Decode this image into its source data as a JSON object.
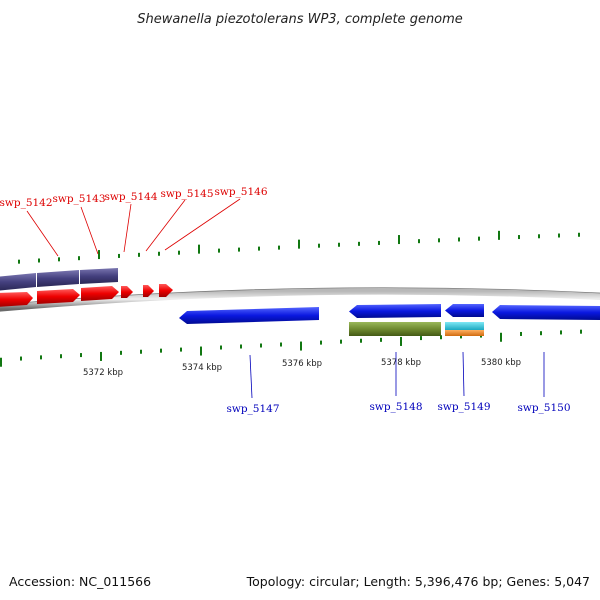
{
  "title": "Shewanella piezotolerans WP3, complete genome",
  "footer": {
    "accession": "Accession: NC_011566",
    "summary": "Topology: circular; Length: 5,396,476 bp; Genes: 5,047"
  },
  "colors": {
    "forward_label": "#dd0000",
    "reverse_label": "#0000bb",
    "tick": "#117711",
    "backbone": "#888888",
    "red_gene": "#ee0000",
    "blue_gene": "#0a18e0",
    "navy_band": "#44407f",
    "olive_band": "#6f8a30",
    "cyan_band": "#22c4dd",
    "orange_band": "#ee8a22"
  },
  "map": {
    "kbp_labels": [
      "5372 kbp",
      "5374 kbp",
      "5376 kbp",
      "5378 kbp",
      "5380 kbp"
    ],
    "forward_genes": [
      {
        "label": "swp_5142"
      },
      {
        "label": "swp_5143"
      },
      {
        "label": "swp_5144"
      },
      {
        "label": "swp_5145"
      },
      {
        "label": "swp_5146"
      }
    ],
    "reverse_genes": [
      {
        "label": "swp_5147"
      },
      {
        "label": "swp_5148"
      },
      {
        "label": "swp_5149"
      },
      {
        "label": "swp_5150"
      }
    ]
  }
}
